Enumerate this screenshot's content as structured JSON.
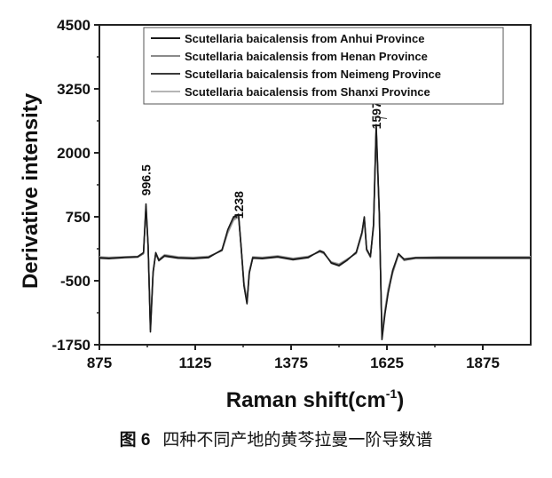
{
  "chart_data": {
    "type": "line",
    "xlabel": "Raman shift(cm",
    "xlabel_sup": "-1",
    "xlabel_close": ")",
    "ylabel": "Derivative intensity",
    "xlim": [
      875,
      2000
    ],
    "ylim": [
      -1750,
      4500
    ],
    "xticks": [
      875,
      1125,
      1375,
      1625,
      1875
    ],
    "yticks": [
      -1750,
      -500,
      750,
      2000,
      3250,
      4500
    ],
    "legend_position": "top-right",
    "annotations": [
      {
        "text": "996.5",
        "x": 996.5,
        "y": 1300
      },
      {
        "text": "1238",
        "x": 1238,
        "y": 850
      },
      {
        "text": "1597",
        "x": 1597,
        "y": 2600
      }
    ],
    "x": [
      875,
      900,
      940,
      975,
      990,
      996.5,
      1002,
      1008,
      1015,
      1022,
      1030,
      1045,
      1080,
      1120,
      1160,
      1195,
      1210,
      1225,
      1238,
      1245,
      1252,
      1260,
      1266,
      1275,
      1300,
      1340,
      1380,
      1420,
      1450,
      1460,
      1480,
      1500,
      1520,
      1545,
      1560,
      1566,
      1572,
      1582,
      1590,
      1597,
      1605,
      1612,
      1620,
      1628,
      1640,
      1655,
      1670,
      1700,
      1760,
      1850,
      1950,
      2000
    ],
    "series": [
      {
        "name": "Scutellaria baicalensis from Anhui Province",
        "color": "#1a1a1a",
        "values": [
          -50,
          -60,
          -40,
          -30,
          50,
          1000,
          200,
          -1500,
          -350,
          50,
          -100,
          -10,
          -50,
          -60,
          -40,
          100,
          500,
          750,
          800,
          150,
          -600,
          -950,
          -350,
          -50,
          -60,
          -30,
          -80,
          -40,
          80,
          50,
          -150,
          -200,
          -100,
          50,
          450,
          750,
          120,
          -20,
          600,
          2550,
          850,
          -1650,
          -1150,
          -750,
          -300,
          30,
          -80,
          -50,
          -50,
          -50,
          -50,
          -50
        ]
      },
      {
        "name": "Scutellaria baicalensis from Henan Province",
        "color": "#8a8a8a",
        "values": [
          -40,
          -50,
          -40,
          -30,
          40,
          900,
          180,
          -1400,
          -320,
          40,
          -90,
          0,
          -40,
          -50,
          -30,
          90,
          450,
          700,
          760,
          130,
          -550,
          -900,
          -320,
          -40,
          -50,
          -20,
          -70,
          -30,
          70,
          40,
          -140,
          -180,
          -90,
          40,
          420,
          700,
          110,
          -30,
          550,
          2450,
          800,
          -1550,
          -1100,
          -700,
          -350,
          0,
          -90,
          -50,
          -40,
          -40,
          -40,
          -40
        ]
      },
      {
        "name": "Scutellaria baicalensis from Neimeng Province",
        "color": "#3a3a3a",
        "values": [
          -60,
          -70,
          -50,
          -40,
          30,
          950,
          150,
          -1450,
          -330,
          30,
          -110,
          -20,
          -60,
          -70,
          -50,
          110,
          480,
          720,
          780,
          120,
          -580,
          -930,
          -340,
          -60,
          -70,
          -40,
          -90,
          -50,
          90,
          60,
          -160,
          -210,
          -110,
          60,
          440,
          730,
          100,
          -40,
          580,
          2500,
          780,
          -1600,
          -1120,
          -720,
          -320,
          20,
          -100,
          -60,
          -60,
          -60,
          -60,
          -60
        ]
      },
      {
        "name": "Scutellaria baicalensis from Shanxi Province",
        "color": "#b5b5b5",
        "values": [
          -30,
          -40,
          -30,
          -20,
          45,
          880,
          170,
          -1350,
          -300,
          45,
          -80,
          10,
          -30,
          -40,
          -20,
          85,
          430,
          680,
          740,
          140,
          -520,
          -880,
          -300,
          -30,
          -40,
          -10,
          -60,
          -20,
          60,
          30,
          -130,
          -170,
          -80,
          30,
          400,
          680,
          90,
          -20,
          520,
          2400,
          760,
          -1500,
          -1050,
          -650,
          -280,
          10,
          -70,
          -40,
          -30,
          -30,
          -30,
          -30
        ]
      }
    ]
  },
  "caption": {
    "figure_number": "图 6",
    "text": "四种不同产地的黄芩拉曼一阶导数谱"
  }
}
